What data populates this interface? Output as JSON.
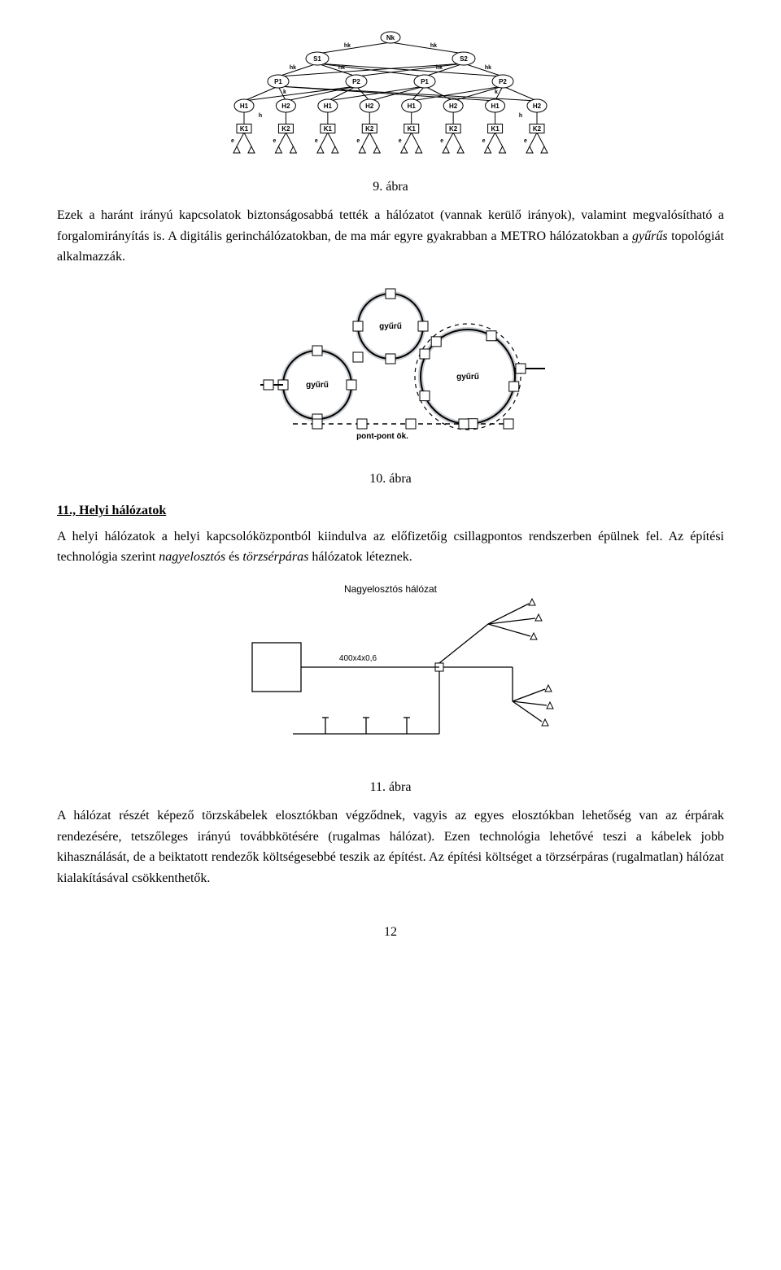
{
  "figure9": {
    "caption": "9. ábra",
    "tree": {
      "root_label": "Nk",
      "level1_edge_label": "hk",
      "level1_labels": [
        "S1",
        "S2"
      ],
      "level2_edge_labels": [
        "hk",
        "hk",
        "hk",
        "hk"
      ],
      "level2_labels": [
        "P1",
        "P2",
        "P1",
        "P2"
      ],
      "level3_edge_label": "k",
      "level3_labels": [
        "H1",
        "H2",
        "H1",
        "H2",
        "H1",
        "H2",
        "H1",
        "H2"
      ],
      "level4_edge_label": "h",
      "level4_labels": [
        "K1",
        "K2",
        "K1",
        "K2",
        "K1",
        "K2",
        "K1",
        "K2"
      ],
      "leaf_edge_label": "e",
      "node_fill": "#ffffff",
      "node_stroke": "#000000",
      "edge_color": "#000000",
      "label_fontsize": 8,
      "edge_label_fontsize": 7
    }
  },
  "paragraph1": {
    "text_a": "Ezek a haránt irányú kapcsolatok biztonságosabbá tették a hálózatot (vannak kerülő irányok), valamint megvalósítható a forgalomirányítás is. A digitális gerinchálózatokban, de ma már egyre gyakrabban a METRO hálózatokban a ",
    "italic_b": "gyűrűs",
    "text_c": " topológiát alkalmazzák."
  },
  "figure10": {
    "caption": "10. ábra",
    "rings": {
      "ring_label_top": "gyűrű",
      "ring_label_left": "gyűrű",
      "ring_label_right": "gyűrű",
      "bottom_label": "pont-pont ök.",
      "ring_stroke": "#000000",
      "ring_stroke_width": 2,
      "shadow_stroke": "#9aa3aa",
      "shadow_stroke_width": 6,
      "dash_stroke": "#000000",
      "node_fill": "#ffffff",
      "node_stroke": "#000000",
      "label_fontsize": 10
    }
  },
  "section11": {
    "heading": "11., Helyi hálózatok"
  },
  "paragraph2": {
    "text_a": "A helyi hálózatok a helyi kapcsolóközpontból kiindulva az előfizetőig csillagpontos rendszerben épülnek fel. Az építési technológia szerint ",
    "italic_b": "nagyelosztós",
    "text_c": " és ",
    "italic_d": "törzsérpáras",
    "text_e": " hálózatok léteznek."
  },
  "figure11": {
    "caption": "11. ábra",
    "diagram": {
      "title": "Nagyelosztós hálózat",
      "cable_label": "400x4x0,6",
      "line_color": "#000000",
      "title_fontsize": 12,
      "label_fontsize": 10
    }
  },
  "paragraph3": {
    "text": "A hálózat részét képező törzskábelek elosztókban végződnek, vagyis az egyes elosztókban lehetőség van az érpárak rendezésére, tetszőleges irányú továbbkötésére (rugalmas hálózat). Ezen technológia lehetővé teszi a kábelek jobb kihasználását, de a beiktatott rendezők költségesebbé teszik az építést. Az építési költséget a törzsérpáras (rugalmatlan) hálózat kialakításával csökkenthetők."
  },
  "page_number": "12"
}
